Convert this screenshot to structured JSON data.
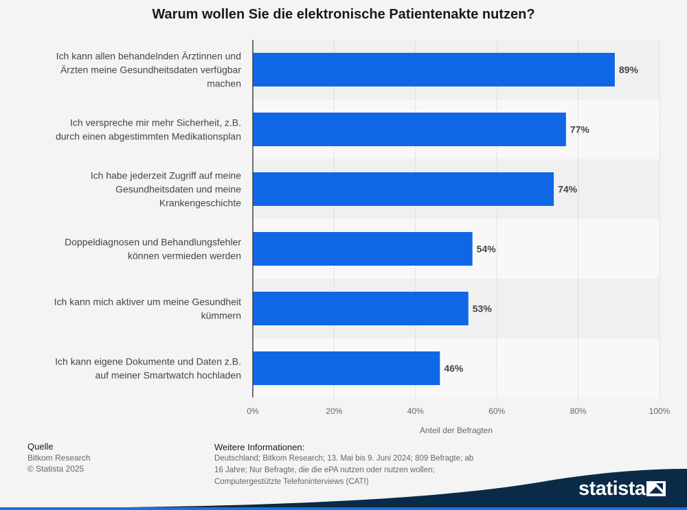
{
  "chart_data": {
    "type": "bar",
    "orientation": "horizontal",
    "title": "Warum wollen Sie die elektronische Patientenakte nutzen?",
    "categories": [
      [
        "Ich kann allen behandelnden Ärztinnen und",
        "Ärzten meine Gesundheitsdaten verfügbar",
        "machen"
      ],
      [
        "Ich verspreche mir mehr Sicherheit, z.B.",
        "durch einen abgestimmten Medikationsplan"
      ],
      [
        "Ich habe jederzeit Zugriff auf meine",
        "Gesundheitsdaten und meine",
        "Krankengeschichte"
      ],
      [
        "Doppeldiagnosen und Behandlungsfehler",
        "können vermieden werden"
      ],
      [
        "Ich kann mich aktiver um meine Gesundheit",
        "kümmern"
      ],
      [
        "Ich kann eigene Dokumente und Daten z.B.",
        "auf meiner Smartwatch hochladen"
      ]
    ],
    "values": [
      89,
      77,
      74,
      54,
      53,
      46
    ],
    "value_labels": [
      "89%",
      "77%",
      "74%",
      "54%",
      "53%",
      "46%"
    ],
    "xlabel": "Anteil der Befragten",
    "xlim": [
      0,
      100
    ],
    "xticks": [
      0,
      20,
      40,
      60,
      80,
      100
    ],
    "xtick_labels": [
      "0%",
      "20%",
      "40%",
      "60%",
      "80%",
      "100%"
    ],
    "grid": true,
    "bar_color": "#0f67e6"
  },
  "footer": {
    "source_heading": "Quelle",
    "source_lines": [
      "Bitkom Research",
      "© Statista 2025"
    ],
    "info_heading": "Weitere Informationen:",
    "info_lines": [
      "Deutschland; Bitkom Research; 13. Mai bis 9. Juni 2024; 809 Befragte; ab",
      "16 Jahre; Nur Befragte, die die ePA nutzen oder nutzen wollen;",
      "Computergestützte Telefoninterviews (CATI)"
    ]
  },
  "brand": {
    "name": "statista",
    "band_color": "#0a2a47",
    "accent_color": "#1e6fd9"
  }
}
